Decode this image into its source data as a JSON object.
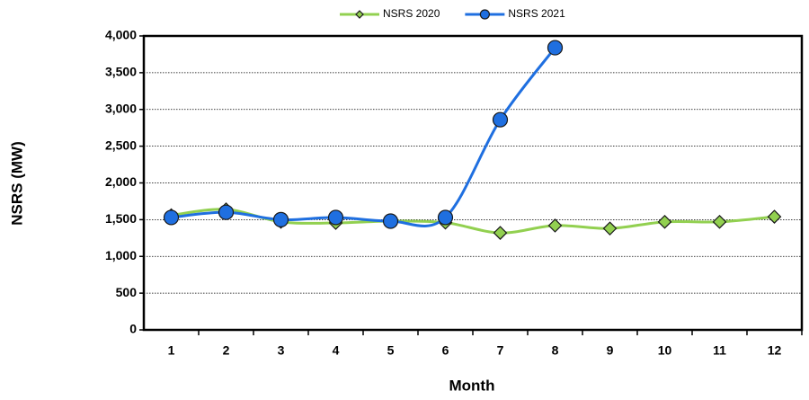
{
  "chart_data": {
    "type": "line",
    "x_label": "Month",
    "y_label": "NSRS (MW)",
    "categories": [
      "1",
      "2",
      "3",
      "4",
      "5",
      "6",
      "7",
      "8",
      "9",
      "10",
      "11",
      "12"
    ],
    "series": [
      {
        "name": "NSRS 2020",
        "color": "#92d050",
        "marker": "diamond",
        "values": [
          1560,
          1640,
          1470,
          1455,
          1480,
          1460,
          1320,
          1420,
          1380,
          1470,
          1470,
          1540
        ]
      },
      {
        "name": "NSRS 2021",
        "color": "#1f6fe0",
        "marker": "circle",
        "values": [
          1530,
          1600,
          1500,
          1530,
          1480,
          1530,
          2860,
          3840,
          null,
          null,
          null,
          null
        ]
      }
    ],
    "ylim": [
      0,
      4000
    ],
    "yticks": [
      0,
      500,
      {
        "value": 1000,
        "label": "1,000"
      },
      {
        "value": 1500,
        "label": "1,500"
      },
      {
        "value": 2000,
        "label": "2,000"
      },
      {
        "value": 2500,
        "label": "2,500"
      },
      {
        "value": 3000,
        "label": "3,000"
      },
      {
        "value": 3500,
        "label": "3,500"
      },
      {
        "value": 4000,
        "label": "4,000"
      }
    ],
    "grid": true,
    "legend": "top"
  }
}
